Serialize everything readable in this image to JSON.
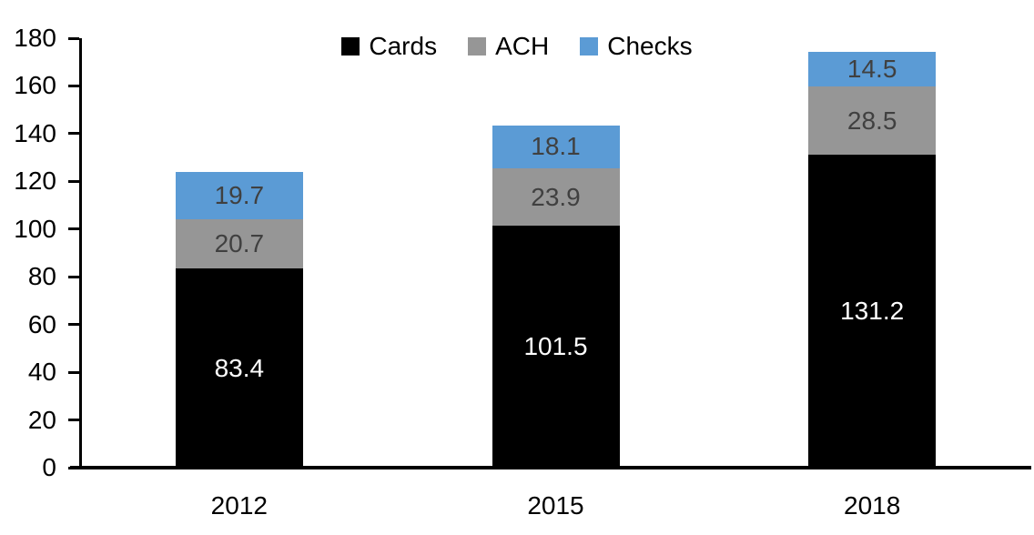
{
  "chart_data": {
    "type": "bar",
    "stacked": true,
    "title": "",
    "xlabel": "",
    "ylabel": "",
    "categories": [
      "2012",
      "2015",
      "2018"
    ],
    "series": [
      {
        "name": "Cards",
        "color": "#000000",
        "label_color": "#ffffff",
        "values": [
          83.4,
          101.5,
          131.2
        ]
      },
      {
        "name": "ACH",
        "color": "#969696",
        "label_color": "#404040",
        "values": [
          20.7,
          23.9,
          28.5
        ]
      },
      {
        "name": "Checks",
        "color": "#5B9BD5",
        "label_color": "#404040",
        "values": [
          19.7,
          18.1,
          14.5
        ]
      }
    ],
    "ylim": [
      0,
      180
    ],
    "yticks": [
      0,
      20,
      40,
      60,
      80,
      100,
      120,
      140,
      160,
      180
    ],
    "grid": false,
    "legend_position": "top-center",
    "axis_color": "#000000"
  }
}
